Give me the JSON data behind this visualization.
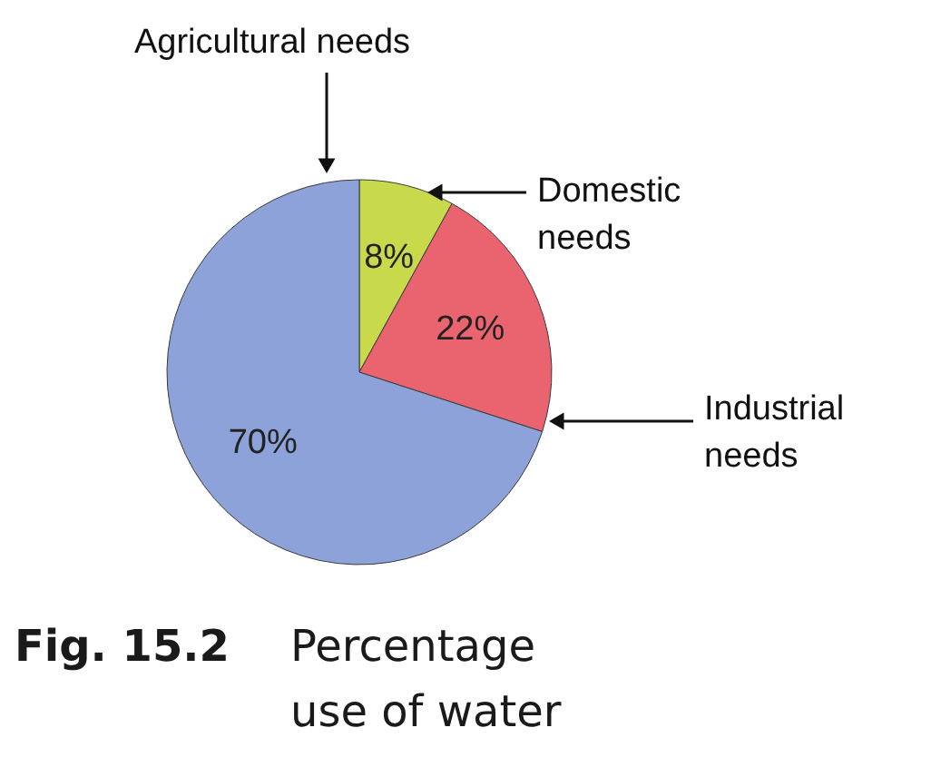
{
  "chart_data": {
    "type": "pie",
    "categories": [
      "Domestic needs",
      "Industrial needs",
      "Agricultural needs"
    ],
    "values": [
      8,
      22,
      70
    ],
    "colors": [
      "#c9d94c",
      "#ea6470",
      "#8ea2da"
    ],
    "value_labels": [
      "8%",
      "22%",
      "70%"
    ],
    "annotations": [
      "Fig. 15.2",
      "Percentage use of water"
    ]
  }
}
